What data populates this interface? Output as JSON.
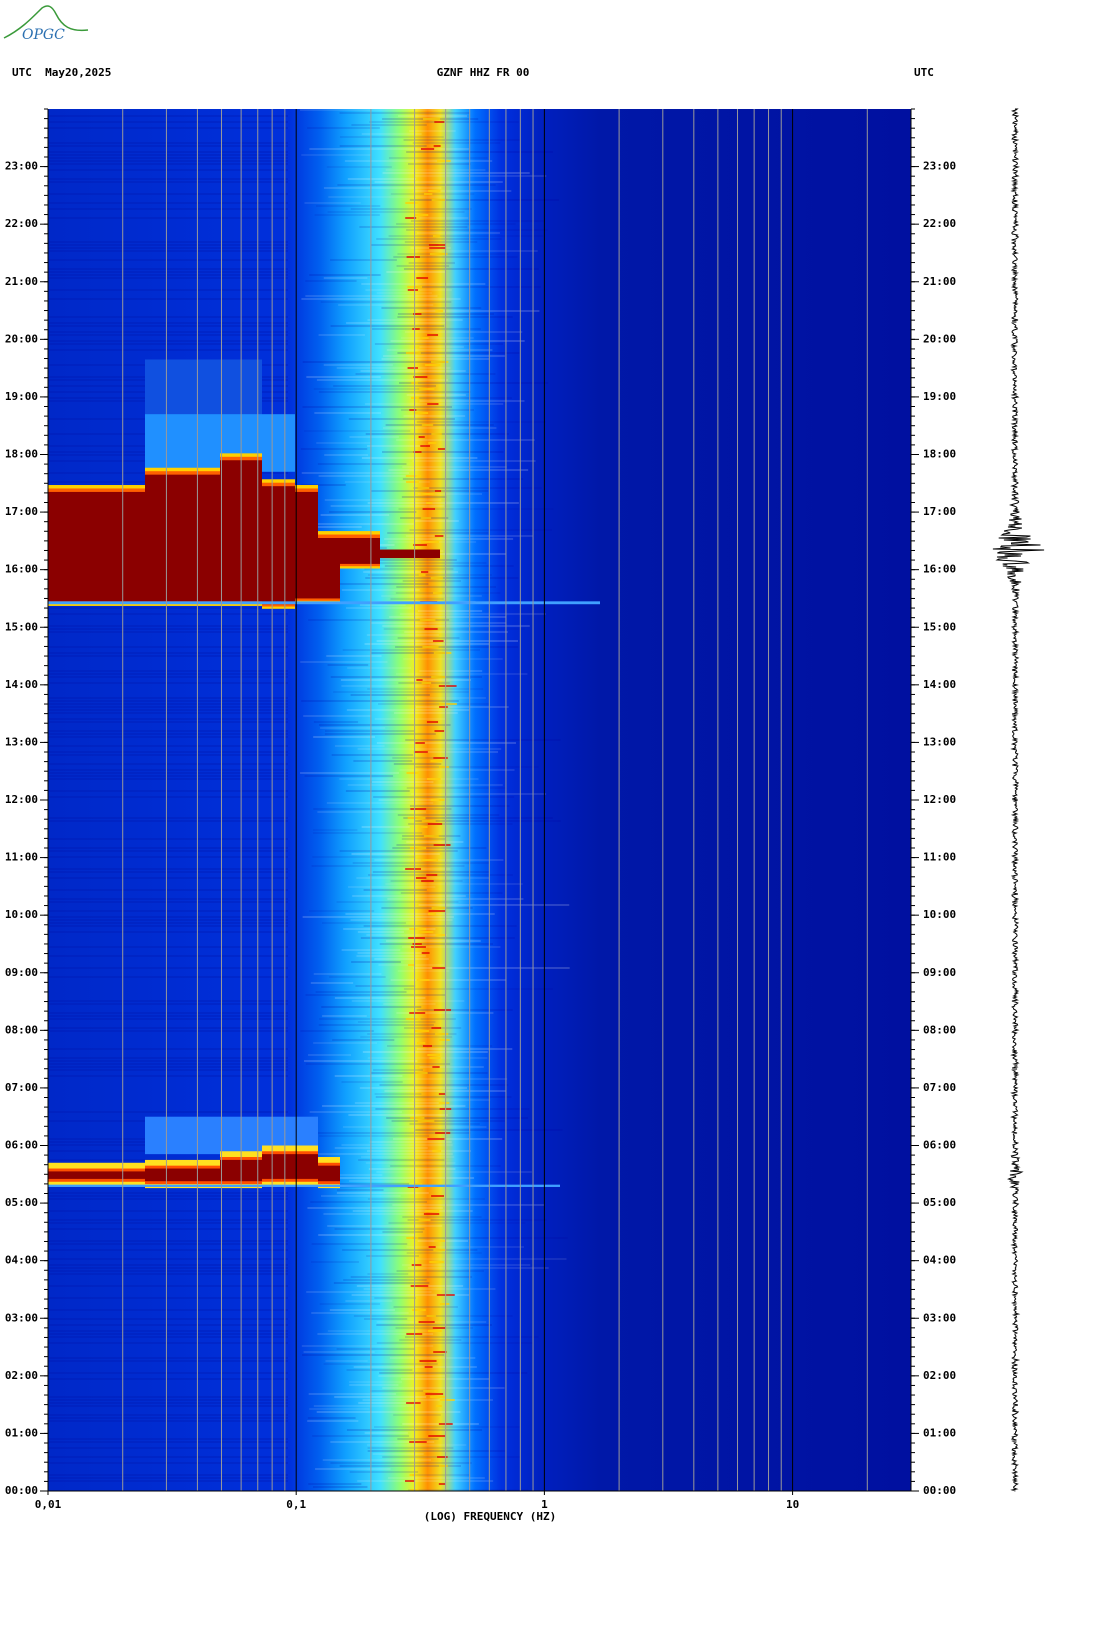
{
  "logo": "OPGC",
  "chart_data": {
    "type": "spectrogram",
    "title": "GZNF HHZ FR 00",
    "left_label": "UTC  May20,2025",
    "right_label": "UTC",
    "x_label": "(LOG) FREQUENCY (HZ)",
    "x_scale": "log",
    "xlim": [
      0.01,
      30
    ],
    "xticks": [
      {
        "value": 0.01,
        "label": "0,01"
      },
      {
        "value": 0.1,
        "label": "0,1"
      },
      1,
      10
    ],
    "ylim": [
      0,
      24
    ],
    "yticks": [
      {
        "value": 0,
        "label": "00:00"
      },
      {
        "value": 1,
        "label": "01:00"
      },
      {
        "value": 2,
        "label": "02:00"
      },
      {
        "value": 3,
        "label": "03:00"
      },
      {
        "value": 4,
        "label": "04:00"
      },
      {
        "value": 5,
        "label": "05:00"
      },
      {
        "value": 6,
        "label": "06:00"
      },
      {
        "value": 7,
        "label": "07:00"
      },
      {
        "value": 8,
        "label": "08:00"
      },
      {
        "value": 9,
        "label": "09:00"
      },
      {
        "value": 10,
        "label": "10:00"
      },
      {
        "value": 11,
        "label": "11:00"
      },
      {
        "value": 12,
        "label": "12:00"
      },
      {
        "value": 13,
        "label": "13:00"
      },
      {
        "value": 14,
        "label": "14:00"
      },
      {
        "value": 15,
        "label": "15:00"
      },
      {
        "value": 16,
        "label": "16:00"
      },
      {
        "value": 17,
        "label": "17:00"
      },
      {
        "value": 18,
        "label": "18:00"
      },
      {
        "value": 19,
        "label": "19:00"
      },
      {
        "value": 20,
        "label": "20:00"
      },
      {
        "value": 21,
        "label": "21:00"
      },
      {
        "value": 22,
        "label": "22:00"
      },
      {
        "value": 23,
        "label": "23:00"
      }
    ]
  }
}
